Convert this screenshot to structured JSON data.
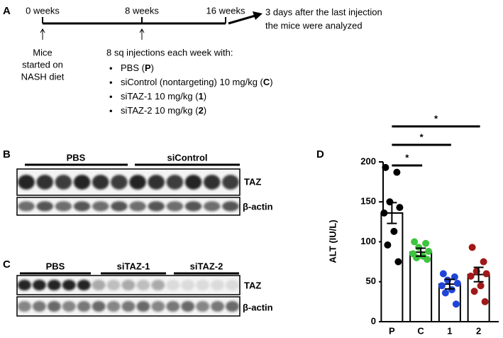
{
  "panel_a": {
    "label": "A",
    "timeline": [
      "0 weeks",
      "8 weeks",
      "16 weeks"
    ],
    "end_note": [
      "3 days after the last injection",
      "the mice were analyzed"
    ],
    "start_note": [
      "Mice",
      "started on",
      "NASH diet"
    ],
    "injection_heading": "8 sq injections each week with:",
    "groups": [
      [
        "PBS (",
        "P",
        ")"
      ],
      [
        "siControl (nontargeting) 10 mg/kg (",
        "C",
        ")"
      ],
      [
        "siTAZ-1 10 mg/kg (",
        "1",
        ")"
      ],
      [
        "siTAZ-2 10 mg/kg (",
        "2",
        ")"
      ]
    ]
  },
  "panel_b": {
    "label": "B",
    "groups": [
      "PBS",
      "siControl"
    ],
    "bands": [
      "TAZ",
      "β-actin"
    ]
  },
  "panel_c": {
    "label": "C",
    "groups": [
      "PBS",
      "siTAZ-1",
      "siTAZ-2"
    ],
    "bands": [
      "TAZ",
      "β-actin"
    ]
  },
  "chart_data": {
    "type": "bar",
    "panel_label": "D",
    "y_label": "ALT (IU/L)",
    "categories": [
      "P",
      "C",
      "1",
      "2"
    ],
    "values": [
      136,
      87,
      47,
      59
    ],
    "errors": [
      13,
      5,
      6,
      9
    ],
    "points": [
      [
        193,
        187,
        150,
        143,
        136,
        113,
        96,
        75
      ],
      [
        100,
        98,
        93,
        88,
        85,
        82,
        80,
        78
      ],
      [
        60,
        56,
        52,
        48,
        45,
        40,
        36,
        22
      ],
      [
        93,
        75,
        63,
        60,
        57,
        45,
        38,
        25
      ]
    ],
    "point_colors": [
      "#000000",
      "#3ec43e",
      "#1f45d8",
      "#a01818"
    ],
    "color": "#ffffff",
    "ylim": [
      0,
      200
    ],
    "yticks": [
      0,
      50,
      100,
      150,
      200
    ],
    "significance": [
      "*",
      "*",
      "*"
    ]
  }
}
